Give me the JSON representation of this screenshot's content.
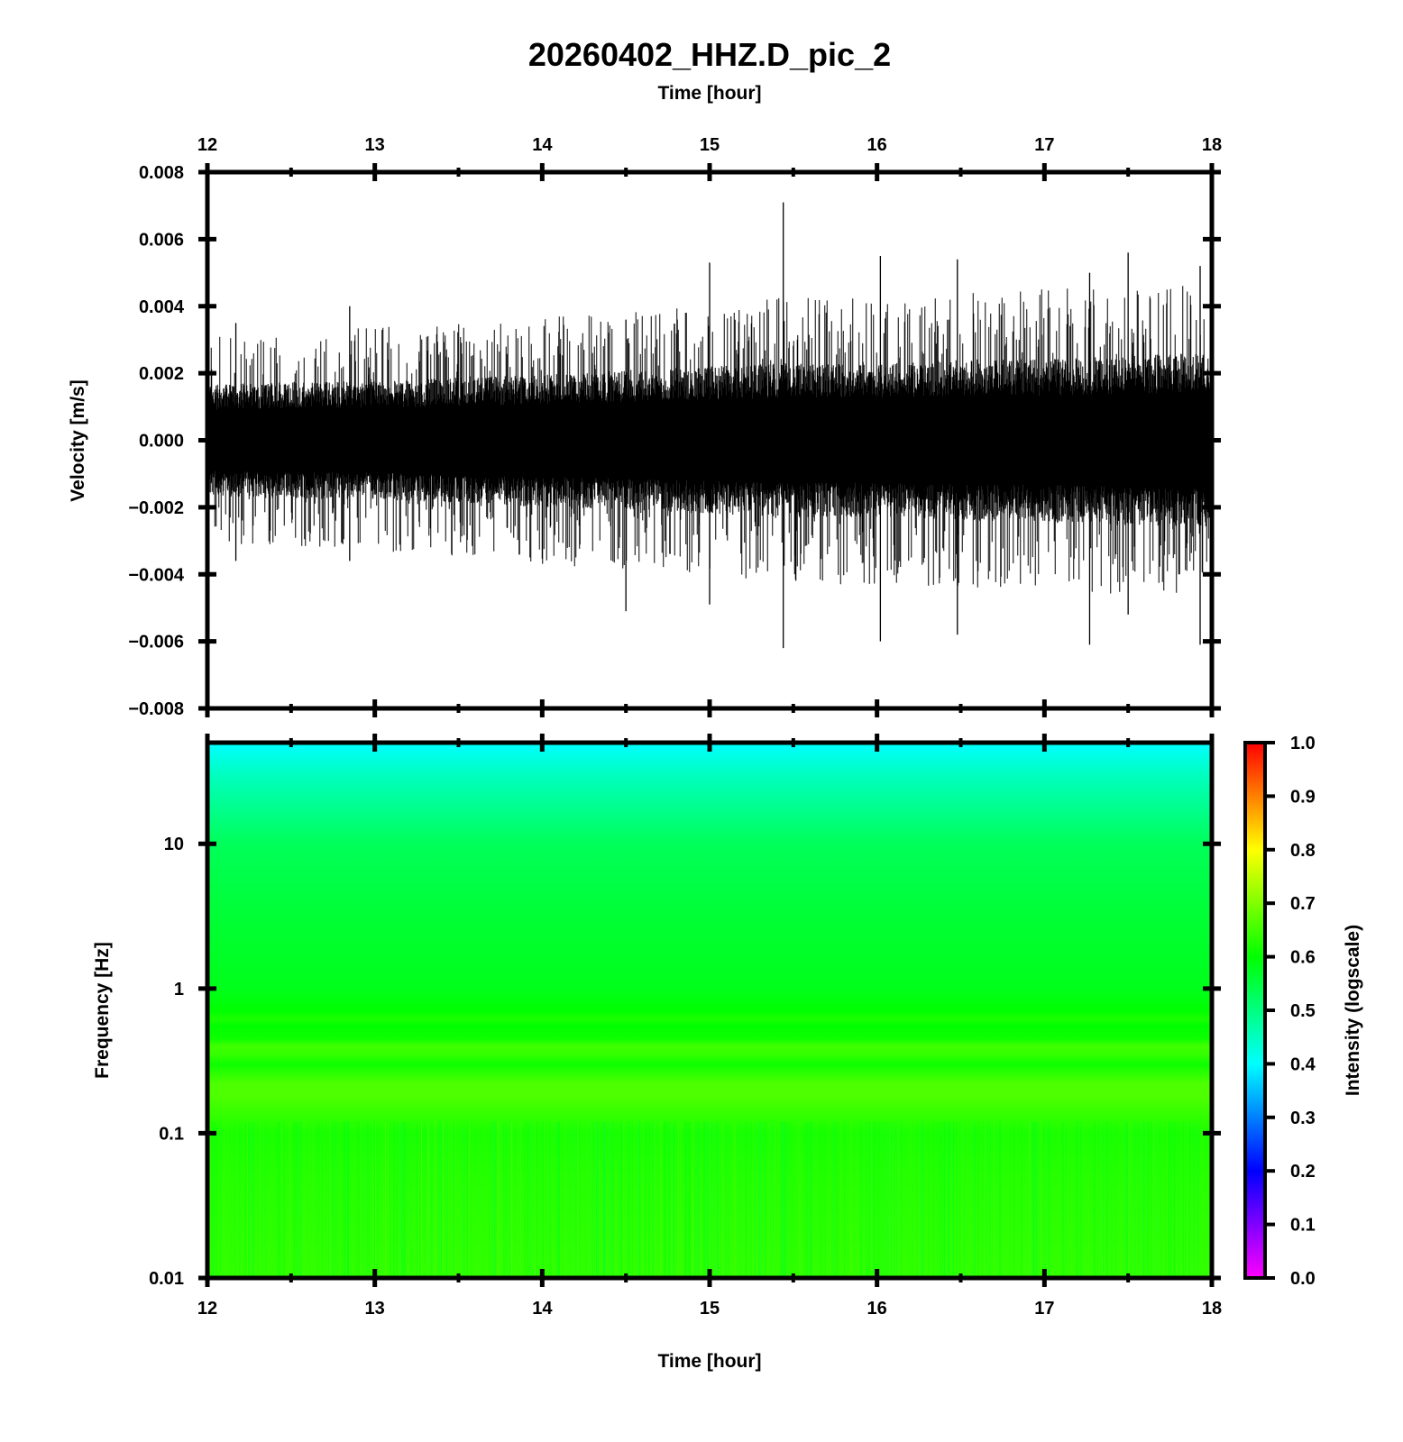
{
  "title": "20260402_HHZ.D_pic_2",
  "chart_data": [
    {
      "type": "line",
      "name": "waveform",
      "title": "20260402_HHZ.D_pic_2",
      "xlabel": "Time [hour]",
      "ylabel": "Velocity [m/s]",
      "xlim": [
        12,
        18
      ],
      "ylim": [
        -0.008,
        0.008
      ],
      "x_ticks": [
        12,
        13,
        14,
        15,
        16,
        17,
        18
      ],
      "x_tick_labels": [
        "12",
        "13",
        "14",
        "15",
        "16",
        "17",
        "18"
      ],
      "y_ticks": [
        -0.008,
        -0.006,
        -0.004,
        -0.002,
        0.0,
        0.002,
        0.004,
        0.006,
        0.008
      ],
      "y_tick_labels": [
        "−0.008",
        "−0.006",
        "−0.004",
        "−0.002",
        "0.000",
        "0.002",
        "0.004",
        "0.006",
        "0.008"
      ],
      "envelope": {
        "x": [
          12.0,
          12.5,
          13.0,
          13.5,
          14.0,
          14.5,
          15.0,
          15.5,
          16.0,
          16.5,
          17.0,
          17.5,
          18.0
        ],
        "dense_max": [
          0.0015,
          0.0016,
          0.0016,
          0.0017,
          0.0018,
          0.0019,
          0.002,
          0.0021,
          0.0021,
          0.0022,
          0.0022,
          0.0023,
          0.0024
        ],
        "peak_max": [
          0.003,
          0.0031,
          0.0033,
          0.0034,
          0.0036,
          0.0038,
          0.004,
          0.0042,
          0.0042,
          0.0043,
          0.0044,
          0.0045,
          0.0046
        ]
      },
      "spikes": [
        {
          "x": 15.44,
          "max": 0.0071,
          "min": -0.0062
        },
        {
          "x": 14.5,
          "max": 0.0036,
          "min": -0.0051
        },
        {
          "x": 15.0,
          "max": 0.0053,
          "min": -0.0049
        },
        {
          "x": 16.02,
          "max": 0.0055,
          "min": -0.006
        },
        {
          "x": 16.48,
          "max": 0.0054,
          "min": -0.0058
        },
        {
          "x": 17.27,
          "max": 0.005,
          "min": -0.0061
        },
        {
          "x": 17.5,
          "max": 0.0056,
          "min": -0.0052
        },
        {
          "x": 17.93,
          "max": 0.0052,
          "min": -0.0061
        },
        {
          "x": 12.17,
          "max": 0.0035,
          "min": -0.0036
        },
        {
          "x": 12.85,
          "max": 0.004,
          "min": -0.0036
        }
      ],
      "grid": false,
      "color": "#000000"
    },
    {
      "type": "heatmap",
      "name": "spectrogram",
      "xlabel": "Time [hour]",
      "ylabel": "Frequency [Hz]",
      "xlim": [
        12,
        18
      ],
      "ylim": [
        0.01,
        50
      ],
      "yscale": "log",
      "x_ticks": [
        12,
        13,
        14,
        15,
        16,
        17,
        18
      ],
      "x_tick_labels": [
        "12",
        "13",
        "14",
        "15",
        "16",
        "17",
        "18"
      ],
      "y_ticks": [
        0.01,
        0.1,
        1,
        10
      ],
      "y_tick_labels": [
        "0.01",
        "0.1",
        "1",
        "10"
      ],
      "intensity_profile": {
        "freq_hz": [
          0.01,
          0.05,
          0.1,
          0.18,
          0.22,
          0.3,
          0.35,
          0.4,
          0.45,
          0.55,
          0.62,
          0.7,
          1,
          3,
          10,
          20,
          30,
          40,
          50
        ],
        "intensity": [
          0.64,
          0.63,
          0.62,
          0.66,
          0.66,
          0.61,
          0.64,
          0.65,
          0.61,
          0.6,
          0.62,
          0.6,
          0.58,
          0.56,
          0.53,
          0.48,
          0.45,
          0.42,
          0.4
        ]
      },
      "colorbar": {
        "label": "Intensity (logscale)",
        "range": [
          0.0,
          1.0
        ],
        "ticks": [
          0.0,
          0.1,
          0.2,
          0.3,
          0.4,
          0.5,
          0.6,
          0.7,
          0.8,
          0.9,
          1.0
        ],
        "tick_labels": [
          "0.0",
          "0.1",
          "0.2",
          "0.3",
          "0.4",
          "0.5",
          "0.6",
          "0.7",
          "0.8",
          "0.9",
          "1.0"
        ],
        "colormap": [
          "#ff00ff",
          "#0000ff",
          "#00ffff",
          "#00ff00",
          "#ffff00",
          "#ff0000"
        ]
      },
      "grid": false
    }
  ]
}
